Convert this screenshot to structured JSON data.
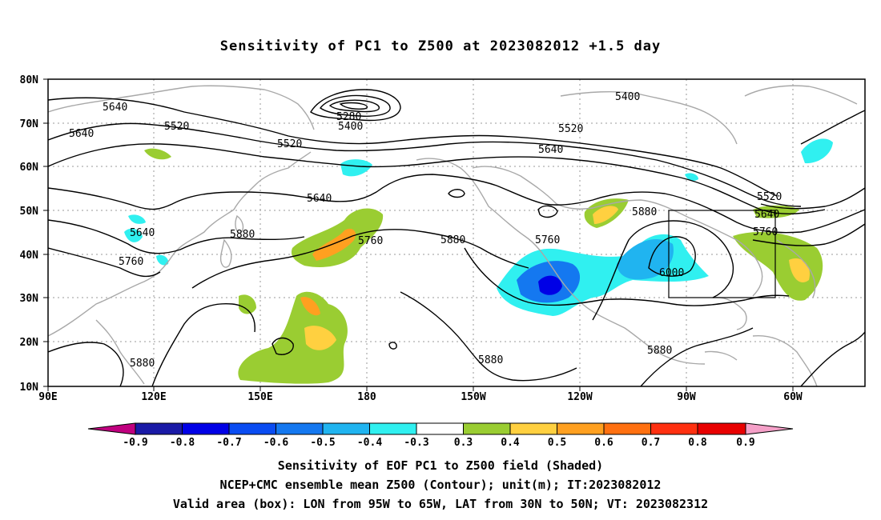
{
  "title": "Sensitivity of PC1 to Z500 at 2023082012 +1.5 day",
  "lat_ticks": [
    "80N",
    "70N",
    "60N",
    "50N",
    "40N",
    "30N",
    "20N",
    "10N"
  ],
  "lon_ticks": [
    "90E",
    "120E",
    "150E",
    "180",
    "150W",
    "120W",
    "90W",
    "60W"
  ],
  "contours": {
    "labels": [
      "5640",
      "5640",
      "5520",
      "5520",
      "5280",
      "5400",
      "5400",
      "5520",
      "5640",
      "5640",
      "5640",
      "5760",
      "5880",
      "5760",
      "5880",
      "5760",
      "5880",
      "6000",
      "5520",
      "5640",
      "5760",
      "5880",
      "5880",
      "5880"
    ]
  },
  "colorbar": {
    "labels": [
      "-0.9",
      "-0.8",
      "-0.7",
      "-0.6",
      "-0.5",
      "-0.4",
      "-0.3",
      "0.3",
      "0.4",
      "0.5",
      "0.6",
      "0.7",
      "0.8",
      "0.9"
    ],
    "colors": [
      "#c0007f",
      "#1a1aa6",
      "#0000e6",
      "#0a4cf2",
      "#1478f0",
      "#20b4f0",
      "#30f0f0",
      "#ffffff",
      "#9acd32",
      "#ffd040",
      "#ffa020",
      "#ff7010",
      "#ff3010",
      "#e80000",
      "#f5a0c8"
    ]
  },
  "caption": {
    "line1": "Sensitivity of EOF PC1 to Z500 field (Shaded)",
    "line2": "NCEP+CMC ensemble mean Z500 (Contour); unit(m); IT:2023082012",
    "line3": "Valid area (box): LON from 95W to 65W, LAT from 30N to 50N; VT: 2023082312"
  }
}
